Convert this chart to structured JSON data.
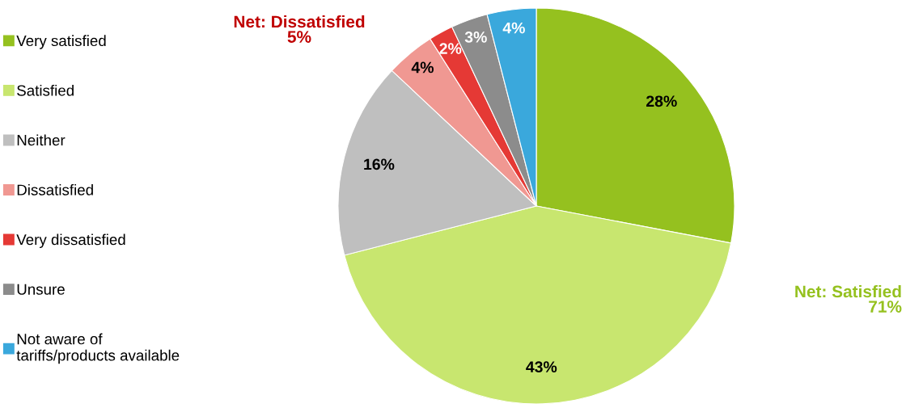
{
  "chart_data": {
    "type": "pie",
    "categories": [
      "Very satisfied",
      "Satisfied",
      "Neither",
      "Dissatisfied",
      "Very dissatisfied",
      "Unsure",
      "Not aware of\ntariffs/products available"
    ],
    "values": [
      28,
      43,
      16,
      4,
      2,
      3,
      4
    ],
    "value_labels": [
      "28%",
      "43%",
      "16%",
      "4%",
      "2%",
      "3%",
      "4%"
    ],
    "colors": [
      "#95c11f",
      "#c8e66f",
      "#bfbfbf",
      "#f09892",
      "#e53935",
      "#8c8c8c",
      "#3aa8dc"
    ],
    "annotations": [
      "Net: Dissatisfied\n5%",
      "Net: Satisfied\n71%"
    ],
    "legend": "left"
  }
}
